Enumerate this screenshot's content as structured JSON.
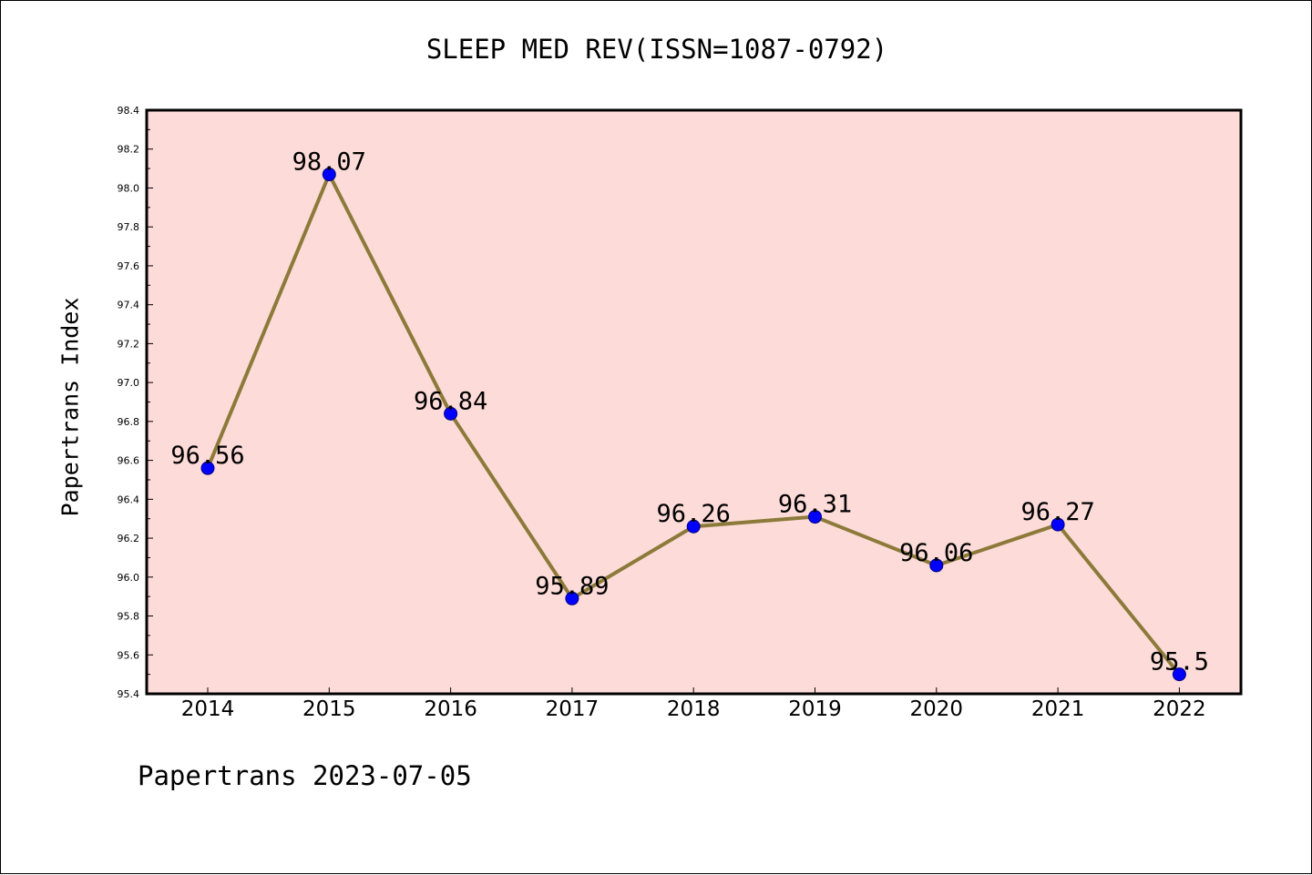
{
  "colors": {
    "plot_background": "#fddbd8",
    "line": "#8c7a3a",
    "marker_fill": "#0000ff",
    "marker_edge": "#000080"
  },
  "footer": {
    "text": "Papertrans 2023-07-05"
  },
  "chart_data": {
    "type": "line",
    "title": "SLEEP MED REV(ISSN=1087-0792)",
    "xlabel": "",
    "ylabel": "Papertrans Index",
    "categories": [
      "2014",
      "2015",
      "2016",
      "2017",
      "2018",
      "2019",
      "2020",
      "2021",
      "2022"
    ],
    "series": [
      {
        "values": [
          96.56,
          98.07,
          96.84,
          95.89,
          96.26,
          96.31,
          96.06,
          96.27,
          95.5
        ],
        "data_labels": [
          "96.56",
          "98.07",
          "96.84",
          "95.89",
          "96.26",
          "96.31",
          "96.06",
          "96.27",
          "95.5"
        ]
      }
    ],
    "ylim": [
      95.4,
      98.4
    ],
    "yticks": [
      "95.4",
      "95.6",
      "95.8",
      "96.0",
      "96.2",
      "96.4",
      "96.6",
      "96.8",
      "97.0",
      "97.2",
      "97.4",
      "97.6",
      "97.8",
      "98.0",
      "98.2",
      "98.4"
    ],
    "grid": false,
    "legend": "none"
  }
}
